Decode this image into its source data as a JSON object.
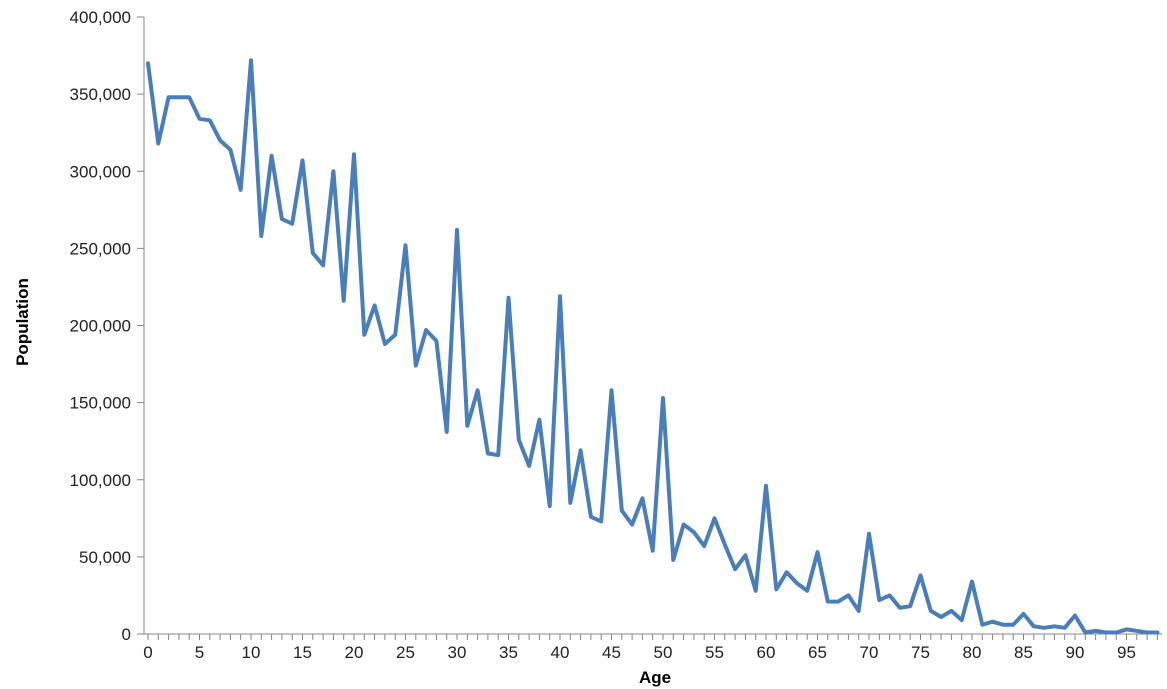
{
  "chart_data": {
    "type": "line",
    "title": "",
    "xlabel": "Age",
    "ylabel": "Population",
    "xlim": [
      0,
      98
    ],
    "ylim": [
      0,
      400000
    ],
    "x_ticks": [
      0,
      5,
      10,
      15,
      20,
      25,
      30,
      35,
      40,
      45,
      50,
      55,
      60,
      65,
      70,
      75,
      80,
      85,
      90,
      95
    ],
    "x_tick_labels": [
      "0",
      "5",
      "10",
      "15",
      "20",
      "25",
      "30",
      "35",
      "40",
      "45",
      "50",
      "55",
      "60",
      "65",
      "70",
      "75",
      "80",
      "85",
      "90",
      "95"
    ],
    "y_ticks": [
      0,
      50000,
      100000,
      150000,
      200000,
      250000,
      300000,
      350000,
      400000
    ],
    "y_tick_labels": [
      "0",
      "50,000",
      "100,000",
      "150,000",
      "200,000",
      "250,000",
      "300,000",
      "350,000",
      "400,000"
    ],
    "grid": false,
    "legend": "none",
    "line_color": "#4a7ebb",
    "series": [
      {
        "x": [
          0,
          1,
          2,
          3,
          4,
          5,
          6,
          7,
          8,
          9,
          10,
          11,
          12,
          13,
          14,
          15,
          16,
          17,
          18,
          19,
          20,
          21,
          22,
          23,
          24,
          25,
          26,
          27,
          28,
          29,
          30,
          31,
          32,
          33,
          34,
          35,
          36,
          37,
          38,
          39,
          40,
          41,
          42,
          43,
          44,
          45,
          46,
          47,
          48,
          49,
          50,
          51,
          52,
          53,
          54,
          55,
          56,
          57,
          58,
          59,
          60,
          61,
          62,
          63,
          64,
          65,
          66,
          67,
          68,
          69,
          70,
          71,
          72,
          73,
          74,
          75,
          76,
          77,
          78,
          79,
          80,
          81,
          82,
          83,
          84,
          85,
          86,
          87,
          88,
          89,
          90,
          91,
          92,
          93,
          94,
          95,
          96,
          97,
          98
        ],
        "values": [
          370000,
          318000,
          348000,
          348000,
          348000,
          334000,
          333000,
          320000,
          314000,
          288000,
          372000,
          258000,
          310000,
          269000,
          266000,
          307000,
          247000,
          239000,
          300000,
          216000,
          311000,
          194000,
          213000,
          188000,
          194000,
          252000,
          174000,
          197000,
          190000,
          131000,
          262000,
          135000,
          158000,
          117000,
          116000,
          218000,
          126000,
          109000,
          139000,
          83000,
          219000,
          85000,
          119000,
          76000,
          73000,
          158000,
          80000,
          71000,
          88000,
          54000,
          153000,
          48000,
          71000,
          66000,
          57000,
          75000,
          58000,
          42000,
          51000,
          28000,
          96000,
          29000,
          40000,
          33000,
          28000,
          53000,
          21000,
          21000,
          25000,
          15000,
          65000,
          22000,
          25000,
          17000,
          18000,
          38000,
          15000,
          11000,
          15000,
          9000,
          34000,
          6000,
          8000,
          6000,
          6000,
          13000,
          5000,
          4000,
          5000,
          4000,
          12000,
          1000,
          2000,
          1000,
          1000,
          3000,
          2000,
          1000,
          1000
        ]
      }
    ]
  }
}
